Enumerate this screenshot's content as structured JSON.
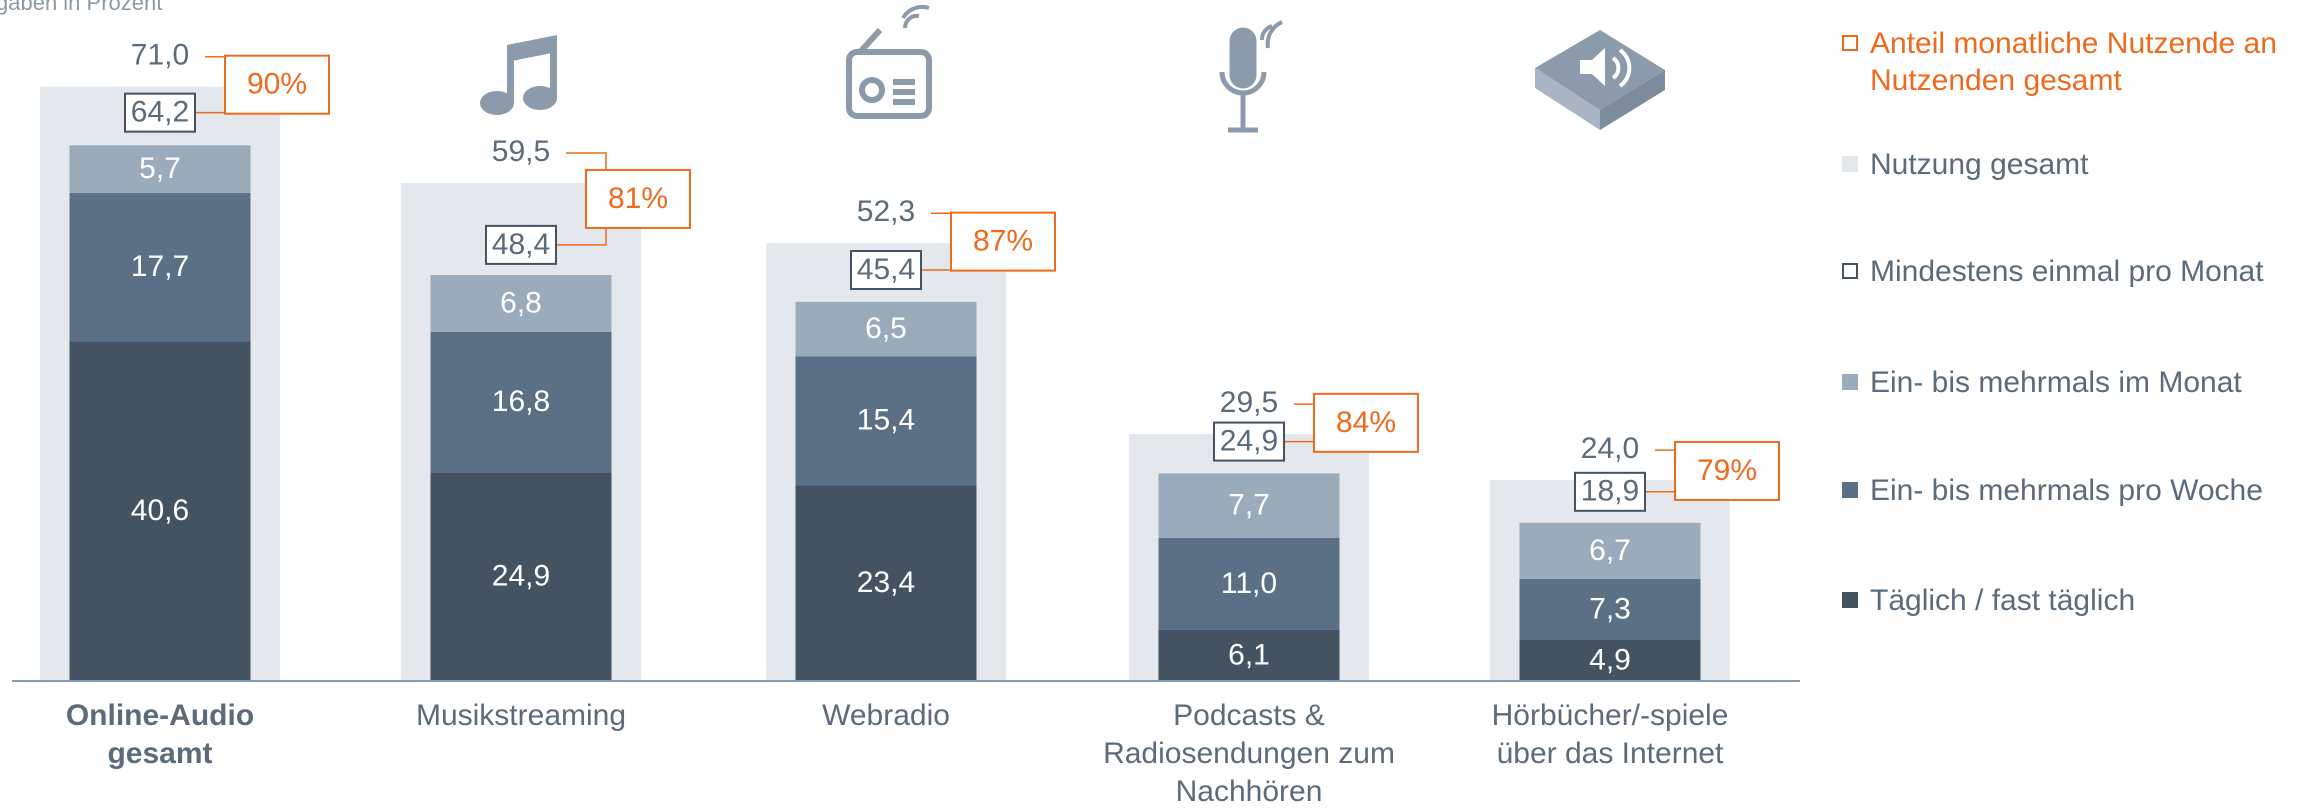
{
  "chart_data": {
    "type": "bar",
    "title": "gaben in Prozent",
    "categories": [
      "Online-Audio gesamt",
      "Musikstreaming",
      "Webradio",
      "Podcasts & Radiosendungen zum Nachhören",
      "Hörbücher/-spiele über das Internet"
    ],
    "series": [
      {
        "name": "Täglich / fast täglich",
        "color": "#435361",
        "values": [
          40.6,
          24.9,
          23.4,
          6.1,
          4.9
        ],
        "value_labels": [
          "40,6",
          "24,9",
          "23,4",
          "6,1",
          "4,9"
        ]
      },
      {
        "name": "Ein- bis mehrmals pro Woche",
        "color": "#5b7085",
        "values": [
          17.7,
          16.8,
          15.4,
          11.0,
          7.3
        ],
        "value_labels": [
          "17,7",
          "16,8",
          "15,4",
          "11,0",
          "7,3"
        ]
      },
      {
        "name": "Ein- bis mehrmals im Monat",
        "color": "#9aabbb",
        "values": [
          5.7,
          6.8,
          6.5,
          7.7,
          6.7
        ],
        "value_labels": [
          "5,7",
          "6,8",
          "6,5",
          "7,7",
          "6,7"
        ]
      }
    ],
    "totals": {
      "name": "Nutzung gesamt",
      "color": "#e4e7ec",
      "values": [
        71.0,
        59.5,
        52.3,
        29.5,
        24.0
      ],
      "value_labels": [
        "71,0",
        "59,5",
        "52,3",
        "29,5",
        "24,0"
      ]
    },
    "monthly": {
      "name": "Mindestens einmal pro Monat",
      "color": "#435361",
      "values": [
        64.2,
        48.4,
        45.4,
        24.9,
        18.9
      ],
      "value_labels": [
        "64,2",
        "48,4",
        "45,4",
        "24,9",
        "18,9"
      ]
    },
    "share": {
      "name": "Anteil monatliche Nutzende an Nutzenden gesamt",
      "color": "#ec6b1f",
      "values": [
        90,
        81,
        87,
        84,
        79
      ],
      "value_labels": [
        "90%",
        "81%",
        "87%",
        "84%",
        "79%"
      ]
    }
  }
}
